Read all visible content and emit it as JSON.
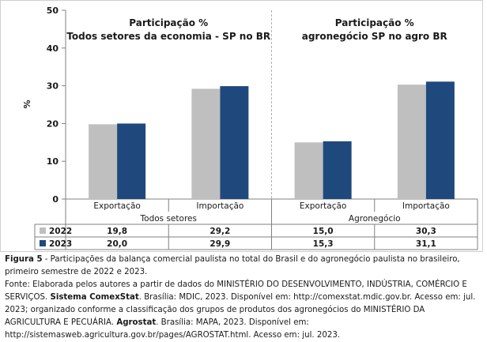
{
  "chart_data": {
    "type": "bar",
    "ylabel": "%",
    "ylim": [
      0,
      50
    ],
    "yticks": [
      0,
      10,
      20,
      30,
      40,
      50
    ],
    "grid": false,
    "panels": [
      {
        "title_line1": "Participação %",
        "title_line2": "Todos setores da economia - SP no BR",
        "group_label": "Todos setores",
        "categories": [
          "Exportação",
          "Importação"
        ]
      },
      {
        "title_line1": "Participação %",
        "title_line2": "agronegócio SP no agro BR",
        "group_label": "Agronegócio",
        "categories": [
          "Exportação",
          "Importação"
        ]
      }
    ],
    "series": [
      {
        "name": "2022",
        "color": "#bfbfbf",
        "values": [
          19.8,
          29.2,
          15.0,
          30.3
        ],
        "labels": [
          "19,8",
          "29,2",
          "15,0",
          "30,3"
        ]
      },
      {
        "name": "2023",
        "color": "#1f497d",
        "values": [
          20.0,
          29.9,
          15.3,
          31.1
        ],
        "labels": [
          "20,0",
          "29,9",
          "15,3",
          "31,1"
        ]
      }
    ]
  },
  "caption": {
    "fig_label": "Figura 5",
    "fig_text": " - Participações da balança comercial paulista no total do Brasil e do agronegócio paulista no brasileiro, primeiro semestre de 2022 e 2023.",
    "source_prefix": "Fonte: Elaborada pelos autores a partir de dados do MINISTÉRIO DO DESENVOLVIMENTO, INDÚSTRIA, COMÉRCIO E SERVIÇOS. ",
    "source_b1": "Sistema ComexStat",
    "source_mid": ". Brasília: MDIC, 2023. Disponível em: http://comexstat.mdic.gov.br. Acesso em: jul. 2023; organizado conforme a classificação dos grupos de produtos dos agronegócios do MINISTÉRIO DA AGRICULTURA E PECUÁRIA. ",
    "source_b2": "Agrostat",
    "source_end": ". Brasília: MAPA, 2023. Disponível em: http://sistemasweb.agricultura.gov.br/pages/AGROSTAT.html. Acesso em: jul. 2023."
  }
}
